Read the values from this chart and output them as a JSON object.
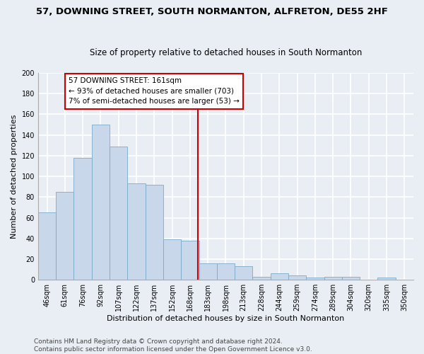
{
  "title": "57, DOWNING STREET, SOUTH NORMANTON, ALFRETON, DE55 2HF",
  "subtitle": "Size of property relative to detached houses in South Normanton",
  "xlabel": "Distribution of detached houses by size in South Normanton",
  "ylabel": "Number of detached properties",
  "categories": [
    "46sqm",
    "61sqm",
    "76sqm",
    "92sqm",
    "107sqm",
    "122sqm",
    "137sqm",
    "152sqm",
    "168sqm",
    "183sqm",
    "198sqm",
    "213sqm",
    "228sqm",
    "244sqm",
    "259sqm",
    "274sqm",
    "289sqm",
    "304sqm",
    "320sqm",
    "335sqm",
    "350sqm"
  ],
  "values": [
    65,
    85,
    118,
    150,
    129,
    93,
    92,
    39,
    38,
    16,
    16,
    13,
    3,
    6,
    4,
    2,
    3,
    3,
    0,
    2,
    0
  ],
  "bar_color": "#c8d8ea",
  "bar_edge_color": "#7aaac8",
  "vline_x_index": 8.45,
  "vline_color": "#cc0000",
  "annotation_line1": "57 DOWNING STREET: 161sqm",
  "annotation_line2": "← 93% of detached houses are smaller (703)",
  "annotation_line3": "7% of semi-detached houses are larger (53) →",
  "annotation_box_color": "#ffffff",
  "annotation_box_edge": "#cc0000",
  "ylim": [
    0,
    200
  ],
  "yticks": [
    0,
    20,
    40,
    60,
    80,
    100,
    120,
    140,
    160,
    180,
    200
  ],
  "footer": "Contains HM Land Registry data © Crown copyright and database right 2024.\nContains public sector information licensed under the Open Government Licence v3.0.",
  "bg_color": "#e8eef4",
  "plot_bg_color": "#e8eef4",
  "grid_color": "#ffffff",
  "title_fontsize": 9.5,
  "subtitle_fontsize": 8.5,
  "axis_label_fontsize": 8,
  "tick_fontsize": 7,
  "annotation_fontsize": 7.5,
  "footer_fontsize": 6.5
}
